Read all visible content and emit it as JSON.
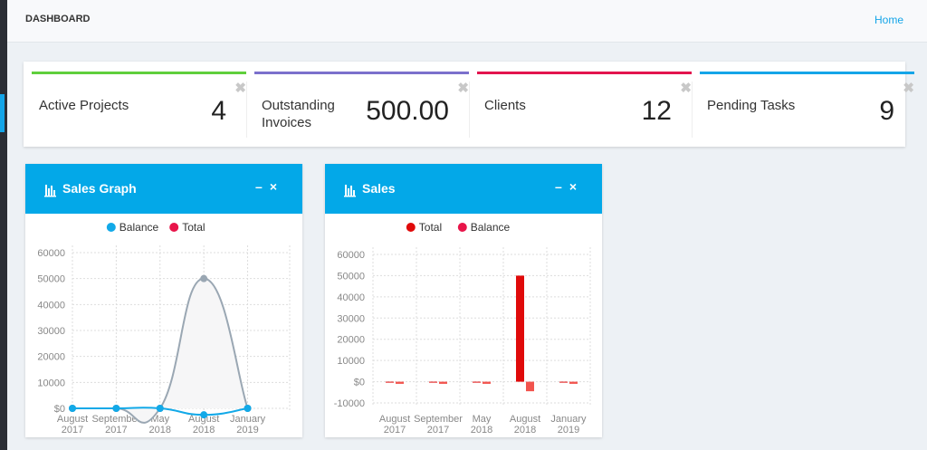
{
  "header": {
    "title": "DASHBOARD",
    "link": "Home"
  },
  "stats": [
    {
      "label": "Active Projects",
      "value": 4,
      "color": "#5fcf3c"
    },
    {
      "label": "Outstanding Invoices",
      "value": "500.00",
      "color": "#7b70cc"
    },
    {
      "label": "Clients",
      "value": 12,
      "color": "#e3144e"
    },
    {
      "label": "Pending Tasks",
      "value": 9,
      "color": "#14a5e8"
    }
  ],
  "charts": [
    {
      "title": "Sales Graph",
      "chart_data": {
        "type": "line",
        "legend": "top",
        "grid": true,
        "categories": [
          "August 2017",
          "September 2017",
          "May 2018",
          "August 2018",
          "January 2019"
        ],
        "series": [
          {
            "name": "Balance",
            "color": "#12a9e8",
            "values": [
              0,
              0,
              0,
              -2500,
              0
            ]
          },
          {
            "name": "Total",
            "color": "#e8154a",
            "line_color": "#9aa7b3",
            "values": [
              0,
              0,
              0,
              50000,
              0
            ]
          }
        ],
        "ylim": [
          0,
          60000
        ],
        "yticks": [
          {
            "value": 0,
            "label": "$0"
          },
          10000,
          20000,
          30000,
          40000,
          50000,
          60000
        ]
      }
    },
    {
      "title": "Sales",
      "chart_data": {
        "type": "bar",
        "legend": "top",
        "grid": true,
        "categories": [
          "August 2017",
          "September 2017",
          "May 2018",
          "August 2018",
          "January 2019"
        ],
        "series": [
          {
            "name": "Total",
            "color": "#e00a0a",
            "values": [
              0,
              0,
              0,
              50000,
              0
            ]
          },
          {
            "name": "Balance",
            "color": "#e8154a",
            "bar_color": "#f2544e",
            "values": [
              -1000,
              -1000,
              -1000,
              -4500,
              -1000
            ]
          }
        ],
        "ylim": [
          -10000,
          60000
        ],
        "yticks": [
          -10000,
          {
            "value": 0,
            "label": "$0"
          },
          10000,
          20000,
          30000,
          40000,
          50000,
          60000
        ]
      }
    }
  ]
}
